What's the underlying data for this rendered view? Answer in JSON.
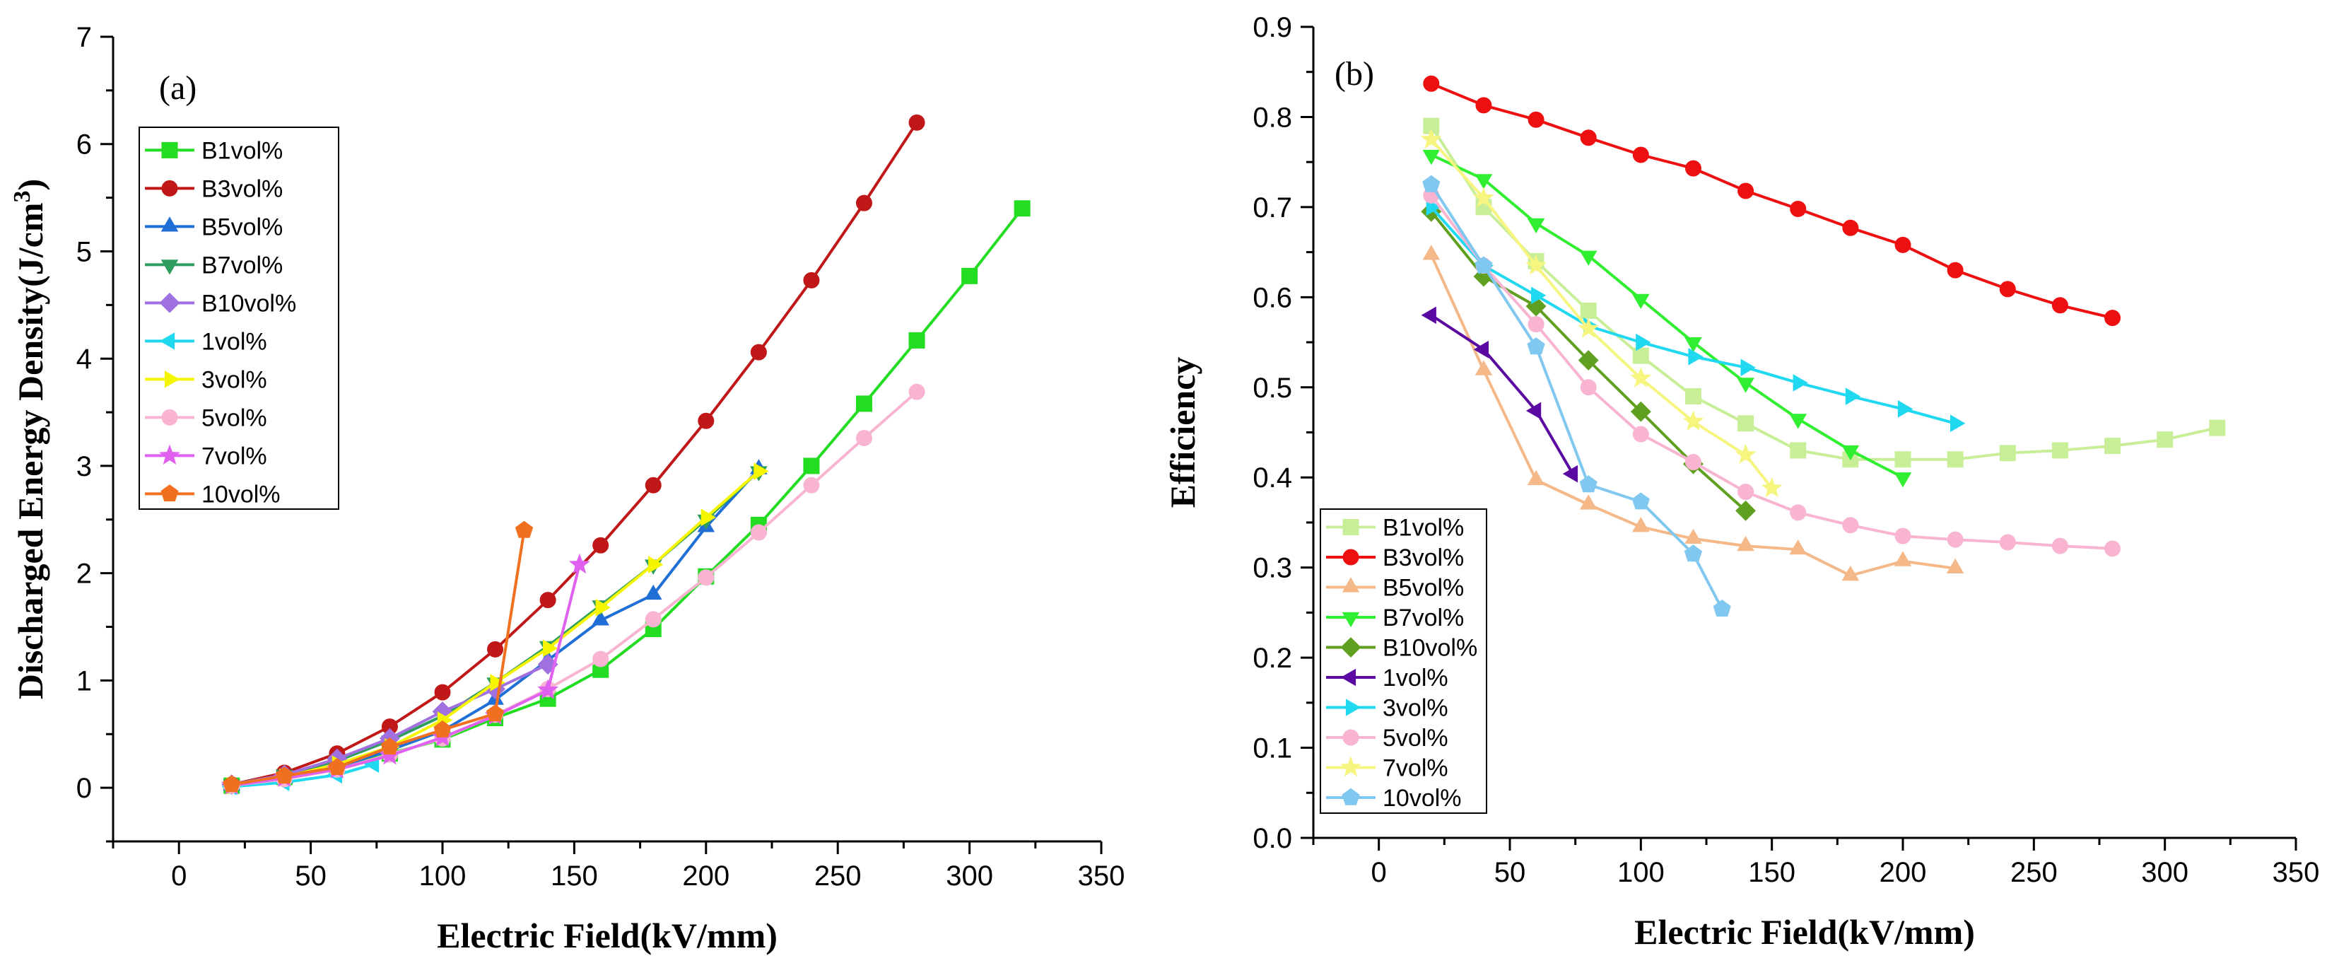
{
  "chart_data": [
    {
      "type": "line",
      "panel_label": "(a)",
      "xlabel": "Electric Field(kV/mm)",
      "ylabel": "Discharged Energy Density(J/cm",
      "ylabel_sup": "3",
      "ylabel_close": ")",
      "xlim": [
        -25,
        350
      ],
      "ylim": [
        -0.5,
        7
      ],
      "xticks": [
        "0",
        "50",
        "100",
        "150",
        "200",
        "250",
        "300",
        "350"
      ],
      "yticks": [
        "0",
        "1",
        "2",
        "3",
        "4",
        "5",
        "6",
        "7"
      ],
      "grid": false,
      "legend_position": "upper-left",
      "series": [
        {
          "name": "B1vol%",
          "color": "#22dd22",
          "marker": "square",
          "x": [
            20,
            40,
            60,
            80,
            100,
            120,
            140,
            160,
            180,
            200,
            220,
            240,
            260,
            280,
            300,
            320
          ],
          "y": [
            0.02,
            0.1,
            0.2,
            0.32,
            0.45,
            0.65,
            0.83,
            1.1,
            1.48,
            1.97,
            2.45,
            3.0,
            3.58,
            4.17,
            4.77,
            5.4
          ]
        },
        {
          "name": "B3vol%",
          "color": "#c01818",
          "marker": "circle",
          "x": [
            20,
            40,
            60,
            80,
            100,
            120,
            140,
            160,
            180,
            200,
            220,
            240,
            260,
            280
          ],
          "y": [
            0.03,
            0.14,
            0.32,
            0.57,
            0.89,
            1.29,
            1.75,
            2.26,
            2.82,
            3.42,
            4.06,
            4.73,
            5.45,
            6.2
          ]
        },
        {
          "name": "B5vol%",
          "color": "#1f6fd6",
          "marker": "triangle-up",
          "x": [
            20,
            40,
            60,
            80,
            100,
            120,
            140,
            160,
            180,
            200,
            220
          ],
          "y": [
            0.02,
            0.09,
            0.19,
            0.35,
            0.53,
            0.82,
            1.19,
            1.56,
            1.8,
            2.43,
            2.97
          ]
        },
        {
          "name": "B7vol%",
          "color": "#2e9e5e",
          "marker": "triangle-down",
          "x": [
            20,
            40,
            60,
            80,
            100,
            120,
            140,
            160,
            180,
            200,
            220
          ],
          "y": [
            0.03,
            0.12,
            0.25,
            0.44,
            0.67,
            0.98,
            1.32,
            1.7,
            2.08,
            2.5,
            2.95
          ]
        },
        {
          "name": "B10vol%",
          "color": "#a070e0",
          "marker": "diamond",
          "x": [
            20,
            40,
            60,
            80,
            100,
            120,
            140
          ],
          "y": [
            0.03,
            0.12,
            0.27,
            0.46,
            0.71,
            0.92,
            1.15
          ]
        },
        {
          "name": "1vol%",
          "color": "#20d8f0",
          "marker": "triangle-left",
          "x": [
            20,
            40,
            60,
            74
          ],
          "y": [
            0.01,
            0.05,
            0.12,
            0.22
          ]
        },
        {
          "name": "3vol%",
          "color": "#f5f500",
          "marker": "triangle-right",
          "x": [
            20,
            40,
            60,
            80,
            100,
            120,
            140,
            160,
            180,
            200,
            220
          ],
          "y": [
            0.02,
            0.1,
            0.22,
            0.38,
            0.63,
            0.98,
            1.3,
            1.68,
            2.08,
            2.52,
            2.95
          ]
        },
        {
          "name": "5vol%",
          "color": "#f8b4d0",
          "marker": "circle",
          "x": [
            20,
            40,
            60,
            80,
            100,
            120,
            140,
            160,
            180,
            200,
            220,
            240,
            260,
            280
          ],
          "y": [
            0.02,
            0.08,
            0.17,
            0.31,
            0.46,
            0.68,
            0.92,
            1.2,
            1.57,
            1.96,
            2.38,
            2.82,
            3.26,
            3.69
          ]
        },
        {
          "name": "7vol%",
          "color": "#e060f0",
          "marker": "star",
          "x": [
            20,
            40,
            60,
            80,
            100,
            120,
            140,
            152
          ],
          "y": [
            0.02,
            0.09,
            0.17,
            0.3,
            0.47,
            0.67,
            0.91,
            2.08
          ]
        },
        {
          "name": "10vol%",
          "color": "#f07020",
          "marker": "pentagon",
          "x": [
            20,
            40,
            60,
            80,
            100,
            120,
            131
          ],
          "y": [
            0.03,
            0.11,
            0.19,
            0.38,
            0.54,
            0.69,
            2.4
          ]
        }
      ]
    },
    {
      "type": "line",
      "panel_label": "(b)",
      "xlabel": "Electric Field(kV/mm)",
      "ylabel": "Efficiency",
      "xlim": [
        -25,
        350
      ],
      "ylim": [
        0,
        0.9
      ],
      "xticks": [
        "0",
        "50",
        "100",
        "150",
        "200",
        "250",
        "300",
        "350"
      ],
      "yticks": [
        "0.0",
        "0.1",
        "0.2",
        "0.3",
        "0.4",
        "0.5",
        "0.6",
        "0.7",
        "0.8",
        "0.9"
      ],
      "grid": false,
      "legend_position": "lower-left",
      "series": [
        {
          "name": "B1vol%",
          "color": "#c8ee98",
          "marker": "square",
          "x": [
            20,
            40,
            60,
            80,
            100,
            120,
            140,
            160,
            180,
            200,
            220,
            240,
            260,
            280,
            300,
            320
          ],
          "y": [
            0.79,
            0.7,
            0.64,
            0.585,
            0.535,
            0.49,
            0.46,
            0.43,
            0.42,
            0.42,
            0.42,
            0.427,
            0.43,
            0.435,
            0.442,
            0.455
          ]
        },
        {
          "name": "B3vol%",
          "color": "#ee1010",
          "marker": "circle",
          "x": [
            20,
            40,
            60,
            80,
            100,
            120,
            140,
            160,
            180,
            200,
            220,
            240,
            260,
            280
          ],
          "y": [
            0.837,
            0.813,
            0.797,
            0.777,
            0.758,
            0.743,
            0.718,
            0.698,
            0.677,
            0.658,
            0.63,
            0.609,
            0.591,
            0.577
          ]
        },
        {
          "name": "B5vol%",
          "color": "#f5b888",
          "marker": "triangle-up",
          "x": [
            20,
            40,
            60,
            80,
            100,
            120,
            140,
            160,
            180,
            200,
            220
          ],
          "y": [
            0.647,
            0.519,
            0.397,
            0.37,
            0.345,
            0.332,
            0.324,
            0.32,
            0.291,
            0.307,
            0.299
          ]
        },
        {
          "name": "B7vol%",
          "color": "#30ee30",
          "marker": "triangle-down",
          "x": [
            20,
            40,
            60,
            80,
            100,
            120,
            140,
            160,
            180,
            200
          ],
          "y": [
            0.758,
            0.731,
            0.682,
            0.646,
            0.598,
            0.55,
            0.505,
            0.465,
            0.43,
            0.4
          ]
        },
        {
          "name": "B10vol%",
          "color": "#60a020",
          "marker": "diamond",
          "x": [
            20,
            40,
            60,
            80,
            100,
            120,
            140
          ],
          "y": [
            0.695,
            0.623,
            0.59,
            0.53,
            0.473,
            0.415,
            0.363
          ]
        },
        {
          "name": "1vol%",
          "color": "#5a0aa0",
          "marker": "triangle-left",
          "x": [
            20,
            40,
            60,
            74
          ],
          "y": [
            0.58,
            0.542,
            0.474,
            0.404
          ]
        },
        {
          "name": "3vol%",
          "color": "#20d8f0",
          "marker": "triangle-right",
          "x": [
            20,
            40,
            60,
            80,
            100,
            120,
            140,
            160,
            180,
            200,
            220
          ],
          "y": [
            0.7,
            0.635,
            0.602,
            0.568,
            0.55,
            0.534,
            0.522,
            0.505,
            0.49,
            0.476,
            0.46
          ]
        },
        {
          "name": "5vol%",
          "color": "#f8b4d0",
          "marker": "circle",
          "x": [
            20,
            40,
            60,
            80,
            100,
            120,
            140,
            160,
            180,
            200,
            220,
            240,
            260,
            280
          ],
          "y": [
            0.713,
            0.635,
            0.57,
            0.5,
            0.448,
            0.417,
            0.384,
            0.361,
            0.347,
            0.335,
            0.331,
            0.328,
            0.324,
            0.321
          ]
        },
        {
          "name": "7vol%",
          "color": "#f5f580",
          "marker": "star",
          "x": [
            20,
            40,
            60,
            80,
            100,
            120,
            140,
            150
          ],
          "y": [
            0.775,
            0.71,
            0.635,
            0.565,
            0.51,
            0.462,
            0.425,
            0.388
          ]
        },
        {
          "name": "10vol%",
          "color": "#80c8f0",
          "marker": "pentagon",
          "x": [
            20,
            40,
            60,
            80,
            100,
            120,
            131
          ],
          "y": [
            0.725,
            0.635,
            0.545,
            0.392,
            0.373,
            0.315,
            0.254
          ]
        }
      ]
    }
  ]
}
